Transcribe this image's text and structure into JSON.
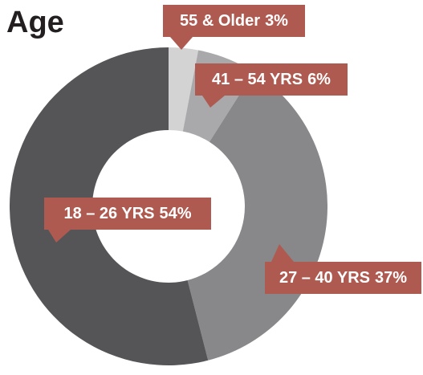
{
  "chart_data": {
    "type": "donut",
    "title": "Age",
    "categories": [
      "55 & Older",
      "41 – 54 YRS",
      "27 – 40 YRS",
      "18 – 26 YRS"
    ],
    "values": [
      3,
      6,
      37,
      54
    ],
    "value_labels": [
      "3%",
      "6%",
      "37%",
      "54%"
    ],
    "colors": [
      "#d3d3d4",
      "#a9a9ab",
      "#88888a",
      "#555557"
    ],
    "label_color": "#ae5a50"
  }
}
